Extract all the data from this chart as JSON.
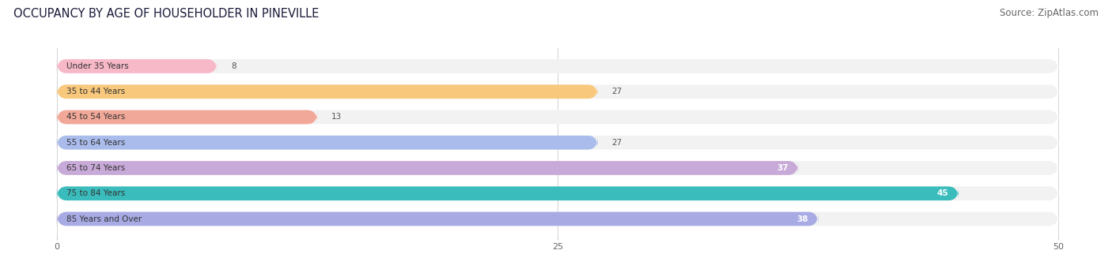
{
  "title": "OCCUPANCY BY AGE OF HOUSEHOLDER IN PINEVILLE",
  "source": "Source: ZipAtlas.com",
  "categories": [
    "Under 35 Years",
    "35 to 44 Years",
    "45 to 54 Years",
    "55 to 64 Years",
    "65 to 74 Years",
    "75 to 84 Years",
    "85 Years and Over"
  ],
  "values": [
    8,
    27,
    13,
    27,
    37,
    45,
    38
  ],
  "bar_colors": [
    "#f7b8c8",
    "#f8c87c",
    "#f2a898",
    "#aabcec",
    "#c8aad8",
    "#3abcbc",
    "#a8aae4"
  ],
  "bar_bg_color": "#f2f2f2",
  "xlim": [
    -2,
    52
  ],
  "data_xlim": [
    0,
    50
  ],
  "xticks": [
    0,
    25,
    50
  ],
  "title_color": "#1a1a3a",
  "source_color": "#666666",
  "title_fontsize": 10.5,
  "source_fontsize": 8.5,
  "label_fontsize": 7.5,
  "value_fontsize": 7.5,
  "background_color": "#ffffff"
}
